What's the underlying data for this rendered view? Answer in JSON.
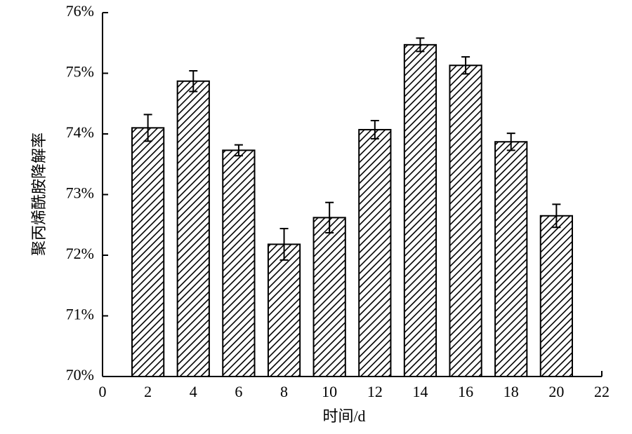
{
  "chart_data": {
    "type": "bar",
    "x_label": "时间/d",
    "y_label": "聚丙烯酰胺降解率",
    "x": [
      2,
      4,
      6,
      8,
      10,
      12,
      14,
      16,
      18,
      20
    ],
    "values": [
      74.1,
      74.87,
      73.73,
      72.18,
      72.62,
      74.07,
      75.47,
      75.13,
      73.87,
      72.65
    ],
    "errors": [
      0.22,
      0.17,
      0.09,
      0.26,
      0.25,
      0.15,
      0.11,
      0.14,
      0.14,
      0.19
    ],
    "color": "#000000",
    "fill": "hatch",
    "xlim": [
      0,
      22
    ],
    "xticks": [
      0,
      2,
      4,
      6,
      8,
      10,
      12,
      14,
      16,
      18,
      20,
      22
    ],
    "ylim": [
      70,
      76
    ],
    "yticks": [
      {
        "value": 70,
        "label": "70%"
      },
      {
        "value": 71,
        "label": "71%"
      },
      {
        "value": 72,
        "label": "72%"
      },
      {
        "value": 73,
        "label": "73%"
      },
      {
        "value": 74,
        "label": "74%"
      },
      {
        "value": 75,
        "label": "75%"
      },
      {
        "value": 76,
        "label": "76%"
      }
    ],
    "grid": false
  }
}
